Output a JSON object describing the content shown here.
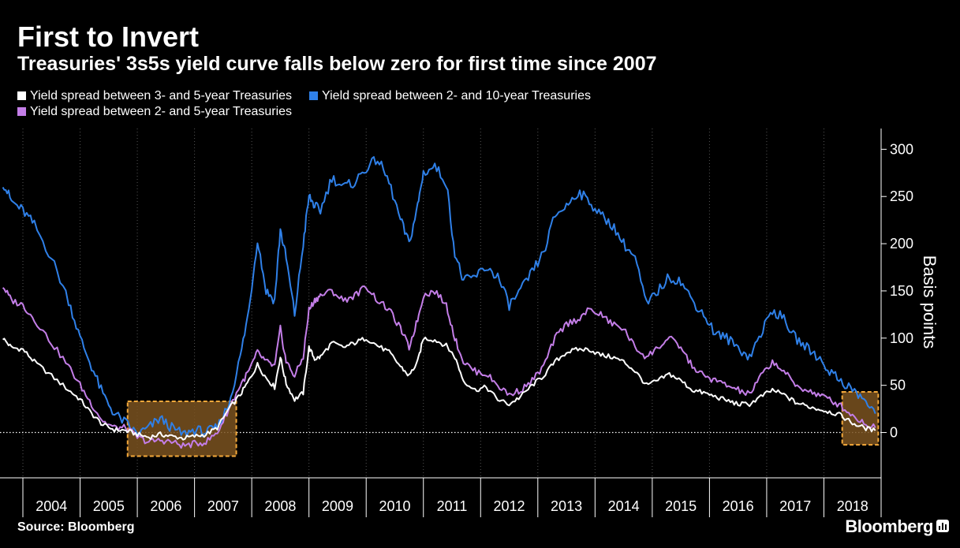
{
  "header": {
    "title": "First to Invert",
    "subtitle": "Treasuries' 3s5s yield curve falls below zero for first time since 2007"
  },
  "footer": {
    "source": "Source: Bloomberg",
    "brand": "Bloomberg"
  },
  "chart_data": {
    "type": "line",
    "ylabel": "Basis points",
    "ylim": [
      -48,
      322
    ],
    "yticks": [
      0,
      50,
      100,
      150,
      200,
      250,
      300
    ],
    "xlim": [
      2003.6,
      2019.0
    ],
    "year_labels": [
      "2004",
      "2005",
      "2006",
      "2007",
      "2008",
      "2009",
      "2010",
      "2011",
      "2012",
      "2013",
      "2014",
      "2015",
      "2016",
      "2017",
      "2018"
    ],
    "zero_line": "dotted",
    "grid": "dotted-vertical",
    "legend_position": "top-left",
    "colors": {
      "s35": "#ffffff",
      "s210": "#2f80e8",
      "s25": "#c47ee8",
      "highlight_fill": "#7a5220",
      "highlight_stroke": "#f3a83a"
    },
    "highlights": [
      {
        "x0": 2005.83,
        "x1": 2007.73,
        "y0": -25,
        "y1": 33
      },
      {
        "x0": 2018.32,
        "x1": 2018.95,
        "y0": -13,
        "y1": 43
      }
    ],
    "series": [
      {
        "name": "Yield spread between 3- and 5-year Treasuries",
        "key": "s35",
        "x": [
          2003.65,
          2003.8,
          2004.0,
          2004.2,
          2004.5,
          2004.8,
          2005.0,
          2005.2,
          2005.4,
          2005.6,
          2005.8,
          2006.0,
          2006.2,
          2006.4,
          2006.6,
          2006.8,
          2007.0,
          2007.2,
          2007.4,
          2007.6,
          2007.8,
          2007.95,
          2008.1,
          2008.25,
          2008.4,
          2008.5,
          2008.6,
          2008.75,
          2008.9,
          2009.0,
          2009.1,
          2009.2,
          2009.4,
          2009.6,
          2009.8,
          2010.0,
          2010.2,
          2010.4,
          2010.6,
          2010.75,
          2010.9,
          2011.0,
          2011.2,
          2011.4,
          2011.55,
          2011.7,
          2011.9,
          2012.1,
          2012.3,
          2012.5,
          2012.7,
          2012.9,
          2013.1,
          2013.3,
          2013.5,
          2013.7,
          2013.9,
          2014.1,
          2014.3,
          2014.5,
          2014.7,
          2014.9,
          2015.1,
          2015.3,
          2015.5,
          2015.7,
          2015.9,
          2016.1,
          2016.3,
          2016.5,
          2016.7,
          2016.9,
          2017.1,
          2017.3,
          2017.5,
          2017.7,
          2017.9,
          2018.1,
          2018.3,
          2018.5,
          2018.7,
          2018.9
        ],
        "values": [
          100,
          90,
          88,
          75,
          60,
          45,
          35,
          20,
          8,
          3,
          2,
          -2,
          -5,
          -2,
          -4,
          -6,
          -4,
          -2,
          5,
          25,
          40,
          55,
          72,
          58,
          48,
          80,
          52,
          35,
          42,
          90,
          78,
          80,
          95,
          90,
          95,
          100,
          92,
          85,
          70,
          60,
          75,
          100,
          98,
          92,
          80,
          55,
          45,
          48,
          35,
          30,
          38,
          50,
          60,
          75,
          85,
          88,
          88,
          82,
          80,
          75,
          65,
          50,
          55,
          62,
          55,
          45,
          42,
          38,
          34,
          30,
          30,
          38,
          45,
          40,
          32,
          28,
          25,
          22,
          18,
          10,
          5,
          2
        ]
      },
      {
        "name": "Yield spread between 2- and 10-year Treasuries",
        "key": "s210",
        "x": [
          2003.65,
          2003.8,
          2004.0,
          2004.2,
          2004.5,
          2004.8,
          2005.0,
          2005.2,
          2005.4,
          2005.6,
          2005.8,
          2006.0,
          2006.2,
          2006.4,
          2006.6,
          2006.8,
          2007.0,
          2007.2,
          2007.4,
          2007.6,
          2007.8,
          2007.95,
          2008.1,
          2008.25,
          2008.4,
          2008.5,
          2008.6,
          2008.75,
          2008.9,
          2009.0,
          2009.1,
          2009.2,
          2009.4,
          2009.6,
          2009.8,
          2010.0,
          2010.2,
          2010.4,
          2010.6,
          2010.75,
          2010.9,
          2011.0,
          2011.2,
          2011.4,
          2011.55,
          2011.7,
          2011.9,
          2012.1,
          2012.3,
          2012.5,
          2012.7,
          2012.9,
          2013.1,
          2013.3,
          2013.5,
          2013.7,
          2013.9,
          2014.1,
          2014.3,
          2014.5,
          2014.7,
          2014.9,
          2015.1,
          2015.3,
          2015.5,
          2015.7,
          2015.9,
          2016.1,
          2016.3,
          2016.5,
          2016.7,
          2016.9,
          2017.1,
          2017.3,
          2017.5,
          2017.7,
          2017.9,
          2018.1,
          2018.3,
          2018.5,
          2018.7,
          2018.9
        ],
        "values": [
          265,
          245,
          235,
          220,
          185,
          140,
          100,
          70,
          40,
          20,
          10,
          -2,
          5,
          15,
          5,
          -2,
          3,
          0,
          5,
          30,
          80,
          130,
          205,
          150,
          140,
          215,
          185,
          125,
          200,
          250,
          240,
          235,
          270,
          260,
          265,
          280,
          290,
          265,
          225,
          200,
          240,
          275,
          282,
          265,
          190,
          160,
          165,
          175,
          165,
          135,
          150,
          170,
          190,
          230,
          240,
          255,
          245,
          230,
          220,
          200,
          185,
          135,
          150,
          165,
          160,
          140,
          125,
          105,
          100,
          90,
          80,
          105,
          130,
          120,
          100,
          90,
          80,
          65,
          55,
          45,
          35,
          20
        ]
      },
      {
        "name": "Yield spread between 2- and 5-year Treasuries",
        "key": "s25",
        "x": [
          2003.65,
          2003.8,
          2004.0,
          2004.2,
          2004.5,
          2004.8,
          2005.0,
          2005.2,
          2005.4,
          2005.6,
          2005.8,
          2006.0,
          2006.2,
          2006.4,
          2006.6,
          2006.8,
          2007.0,
          2007.2,
          2007.4,
          2007.6,
          2007.8,
          2007.95,
          2008.1,
          2008.25,
          2008.4,
          2008.5,
          2008.6,
          2008.75,
          2008.9,
          2009.0,
          2009.1,
          2009.2,
          2009.4,
          2009.6,
          2009.8,
          2010.0,
          2010.2,
          2010.4,
          2010.6,
          2010.75,
          2010.9,
          2011.0,
          2011.2,
          2011.4,
          2011.55,
          2011.7,
          2011.9,
          2012.1,
          2012.3,
          2012.5,
          2012.7,
          2012.9,
          2013.1,
          2013.3,
          2013.5,
          2013.7,
          2013.9,
          2014.1,
          2014.3,
          2014.5,
          2014.7,
          2014.9,
          2015.1,
          2015.3,
          2015.5,
          2015.7,
          2015.9,
          2016.1,
          2016.3,
          2016.5,
          2016.7,
          2016.9,
          2017.1,
          2017.3,
          2017.5,
          2017.7,
          2017.9,
          2018.1,
          2018.3,
          2018.5,
          2018.7,
          2018.9
        ],
        "values": [
          155,
          140,
          135,
          120,
          95,
          70,
          50,
          30,
          12,
          5,
          5,
          -5,
          -10,
          -8,
          -10,
          -14,
          -12,
          -10,
          0,
          25,
          50,
          65,
          85,
          75,
          70,
          110,
          75,
          60,
          80,
          130,
          140,
          145,
          150,
          140,
          145,
          155,
          140,
          130,
          110,
          90,
          120,
          145,
          150,
          135,
          100,
          75,
          65,
          62,
          50,
          40,
          45,
          55,
          70,
          100,
          115,
          120,
          130,
          125,
          115,
          110,
          90,
          80,
          90,
          100,
          90,
          70,
          60,
          55,
          50,
          45,
          40,
          60,
          75,
          65,
          50,
          45,
          40,
          35,
          28,
          18,
          10,
          5
        ]
      }
    ]
  }
}
